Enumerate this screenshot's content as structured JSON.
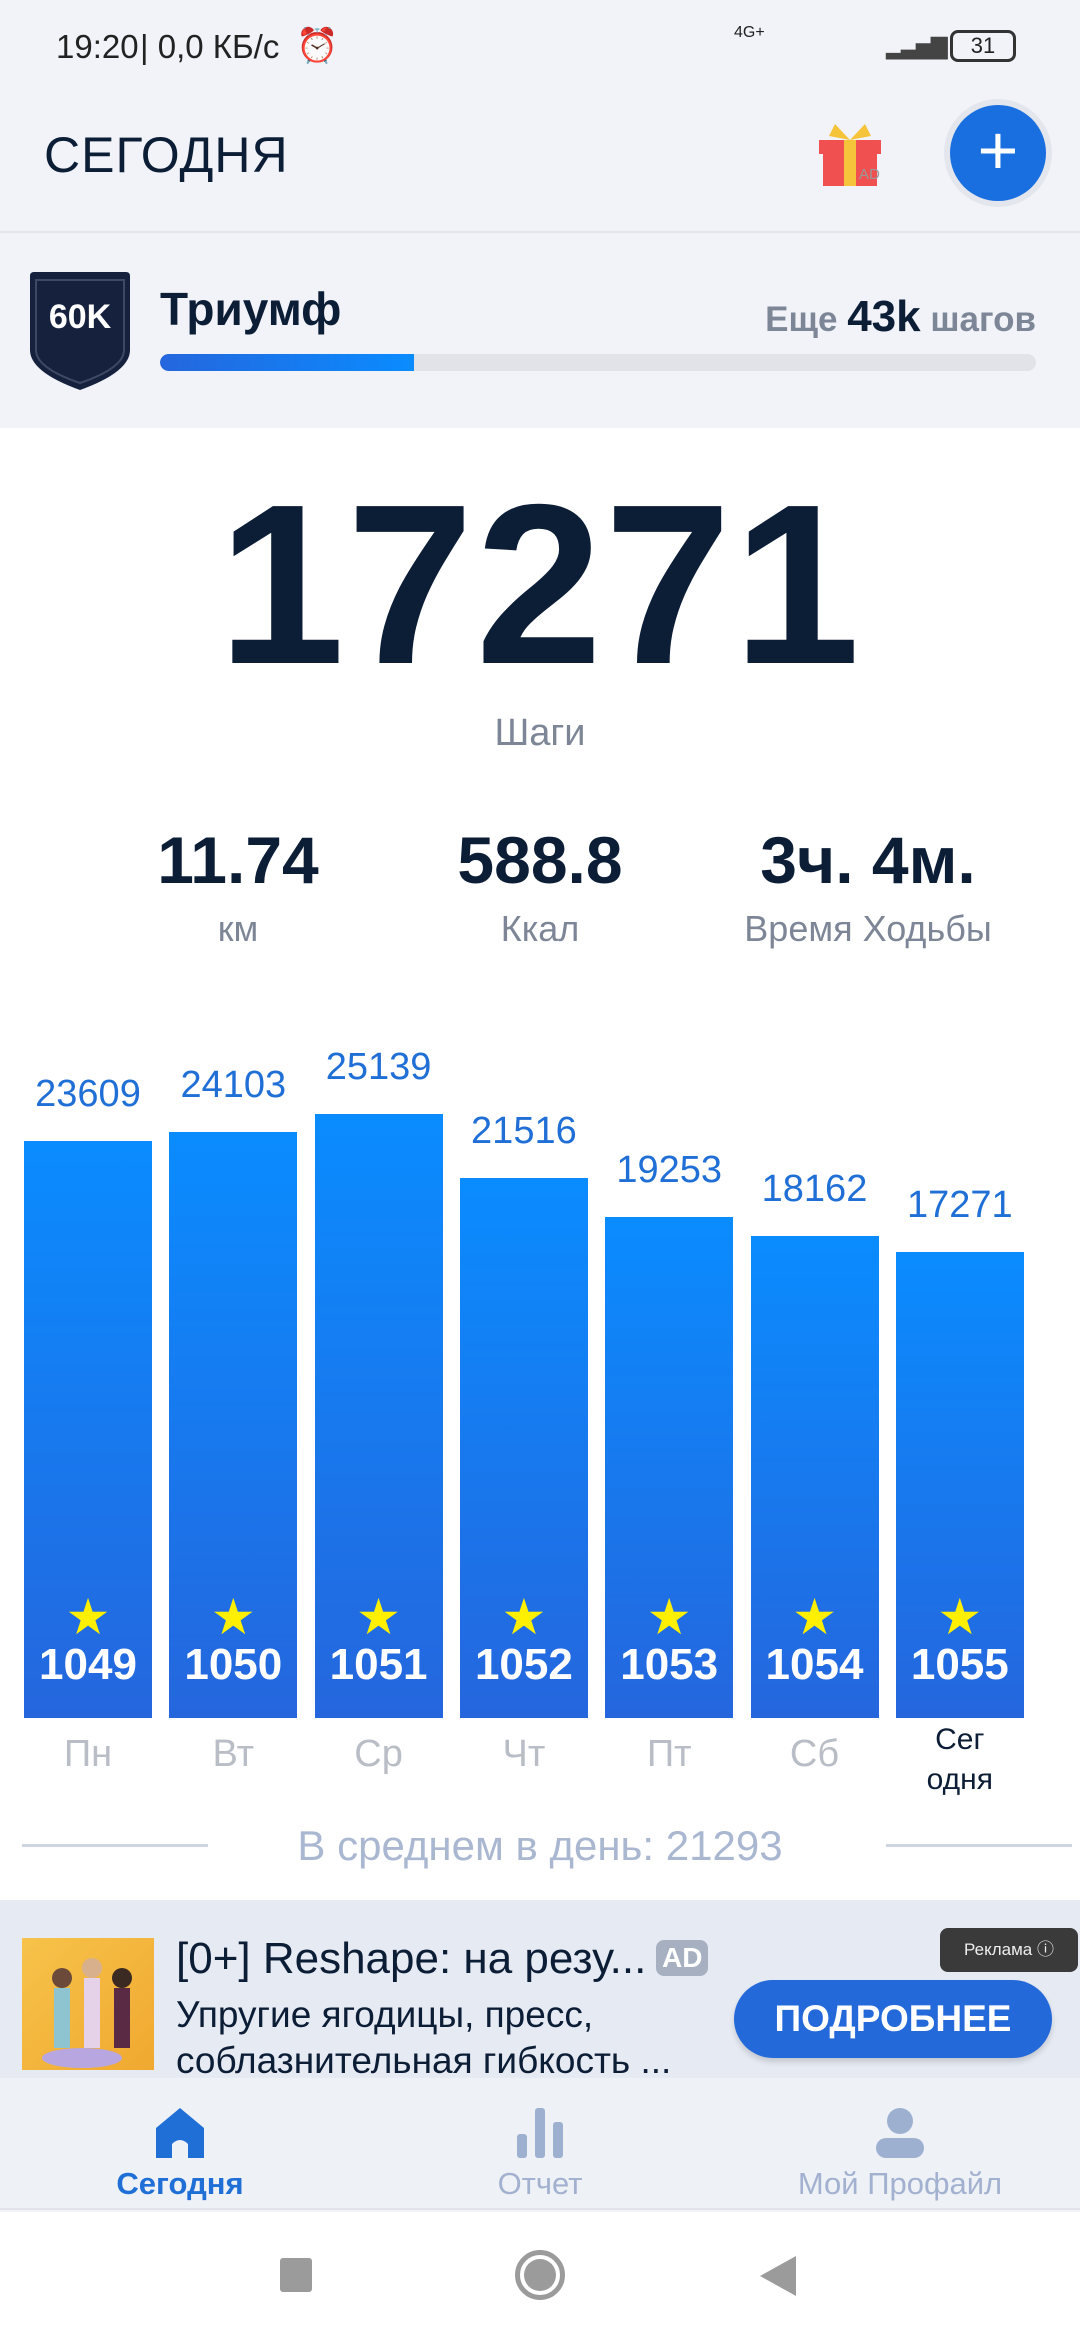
{
  "status_bar": {
    "time": "19:20",
    "speed": "0,0 КБ/с",
    "network": "4G+",
    "battery": "31"
  },
  "header": {
    "title": "СЕГОДНЯ",
    "gift_badge": "AD",
    "add_button": "+"
  },
  "achievement": {
    "badge": "60K",
    "title": "Триумф",
    "remain_prefix": "Еще",
    "remain_value": "43k",
    "remain_suffix": "шагов",
    "progress": 0.29
  },
  "today": {
    "steps": "17271",
    "steps_label": "Шаги"
  },
  "stats": [
    {
      "value": "11.74",
      "label": "км"
    },
    {
      "value": "588.8",
      "label": "Ккал"
    },
    {
      "value": "3ч. 4м.",
      "label": "Время Ходьбы"
    }
  ],
  "chart_data": {
    "type": "bar",
    "categories": [
      "Пн",
      "Вт",
      "Ср",
      "Чт",
      "Пт",
      "Сб",
      "Сег одня"
    ],
    "values": [
      23609,
      24103,
      25139,
      21516,
      19253,
      18162,
      17271
    ],
    "value_labels": [
      "23609",
      "24103",
      "25139",
      "21516",
      "19253",
      "18162",
      "17271"
    ],
    "day_numbers": [
      "1049",
      "1050",
      "1051",
      "1052",
      "1053",
      "1054",
      "1055"
    ],
    "today_label": [
      "Сег",
      "одня"
    ],
    "colors": {
      "bar_top": "#0a8cff",
      "bar_bottom": "#2566dd",
      "star": "#ffef00"
    }
  },
  "average": "В среднем в день: 21293",
  "ad": {
    "title": "[0+] Reshape: на резу...",
    "badge": "AD",
    "desc_line1": "Упругие ягодицы, пресс,",
    "desc_line2": "соблазнительная гибкость ...",
    "button": "ПОДРОБНЕЕ",
    "label": "Реклама ⓘ"
  },
  "nav": {
    "items": [
      {
        "label": "Сегодня",
        "icon": "home-icon",
        "active": true
      },
      {
        "label": "Отчет",
        "icon": "bar-chart-icon"
      },
      {
        "label": "Мой Профайл",
        "icon": "profile-icon"
      }
    ]
  },
  "accent": "#1f6fd6"
}
